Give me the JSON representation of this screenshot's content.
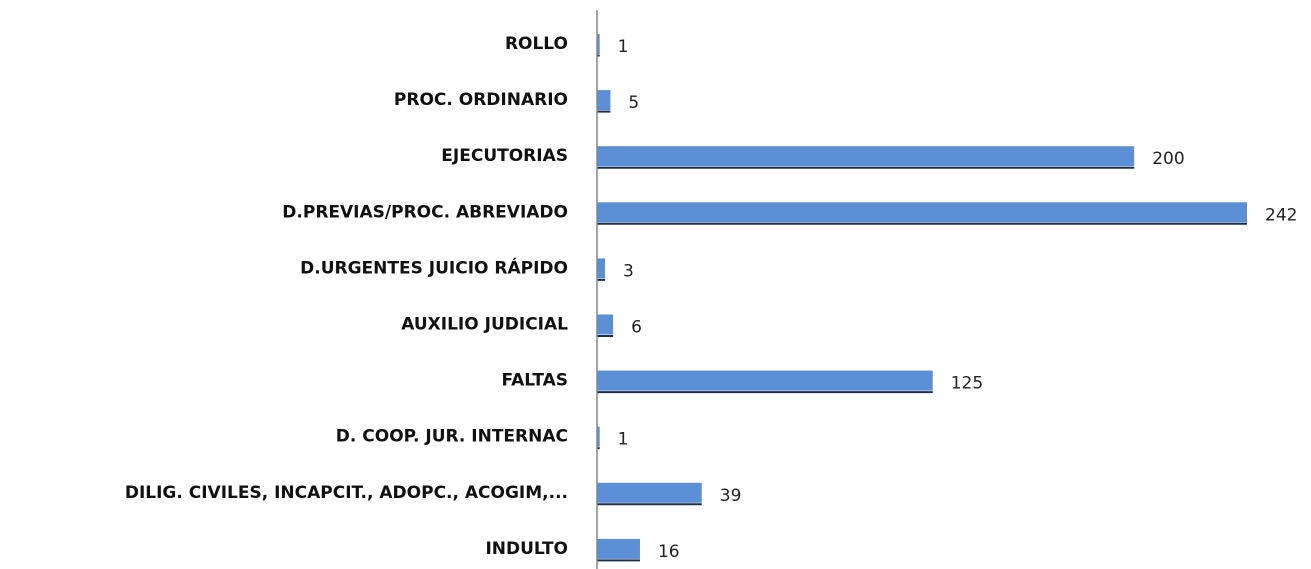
{
  "chart_data": {
    "type": "barh",
    "categories": [
      "ROLLO",
      "PROC. ORDINARIO",
      "EJECUTORIAS",
      "D.PREVIAS/PROC. ABREVIADO",
      "D.URGENTES JUICIO RÁPIDO",
      "AUXILIO JUDICIAL",
      "FALTAS",
      "D. COOP. JUR. INTERNAC",
      "DILIG. CIVILES, INCAPCIT., ADOPC., ACOGIM,...",
      "INDULTO"
    ],
    "values": [
      1,
      5,
      200,
      242,
      3,
      6,
      125,
      1,
      39,
      16
    ],
    "color": "#5b8fd6",
    "xlim": [
      0,
      250
    ]
  }
}
